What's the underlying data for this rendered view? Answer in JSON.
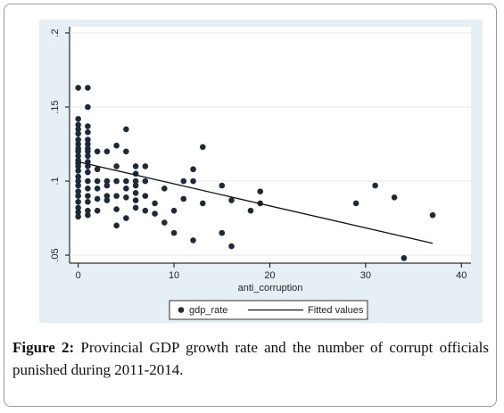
{
  "chart_data": {
    "type": "scatter",
    "xlabel": "anti_corruption",
    "xlim": [
      -0.9,
      41
    ],
    "xticks": [
      0,
      10,
      20,
      30,
      40
    ],
    "ylim": [
      0.0446,
      0.2042
    ],
    "yticks": [
      {
        "value": 0.05,
        "label": ".05"
      },
      {
        "value": 0.1,
        "label": ".1"
      },
      {
        "value": 0.15,
        "label": ".15"
      },
      {
        "value": 0.2,
        "label": ".2"
      }
    ],
    "grid": true,
    "series": [
      {
        "name": "gdp_rate",
        "color": "#1c2a3a",
        "x": [
          0,
          0,
          0,
          0,
          0,
          0,
          0,
          0,
          0,
          0,
          0,
          0,
          0,
          0,
          0,
          0,
          0,
          0,
          0,
          0,
          0,
          0,
          0,
          1,
          1,
          1,
          1,
          1,
          1,
          1,
          1,
          1,
          1,
          1,
          1,
          1,
          1,
          1,
          1,
          1,
          1,
          2,
          2,
          2,
          2,
          2,
          2,
          3,
          3,
          3,
          3,
          3,
          4,
          4,
          4,
          4,
          4,
          4,
          5,
          5,
          5,
          5,
          5,
          5,
          6,
          6,
          6,
          6,
          6,
          6,
          6,
          7,
          7,
          7,
          7,
          8,
          8,
          9,
          9,
          10,
          10,
          11,
          11,
          12,
          12,
          12,
          13,
          13,
          15,
          15,
          16,
          16,
          18,
          19,
          19,
          29,
          31,
          33,
          34,
          37
        ],
        "values": [
          0.163,
          0.142,
          0.138,
          0.135,
          0.132,
          0.128,
          0.125,
          0.122,
          0.12,
          0.117,
          0.114,
          0.112,
          0.11,
          0.107,
          0.103,
          0.1,
          0.097,
          0.093,
          0.09,
          0.086,
          0.082,
          0.079,
          0.076,
          0.163,
          0.15,
          0.137,
          0.133,
          0.128,
          0.125,
          0.122,
          0.12,
          0.117,
          0.113,
          0.11,
          0.106,
          0.1,
          0.095,
          0.09,
          0.086,
          0.08,
          0.077,
          0.12,
          0.108,
          0.1,
          0.095,
          0.088,
          0.08,
          0.12,
          0.1,
          0.097,
          0.09,
          0.087,
          0.124,
          0.11,
          0.1,
          0.09,
          0.081,
          0.07,
          0.135,
          0.12,
          0.1,
          0.095,
          0.089,
          0.075,
          0.11,
          0.105,
          0.1,
          0.097,
          0.092,
          0.087,
          0.082,
          0.11,
          0.1,
          0.09,
          0.08,
          0.085,
          0.078,
          0.095,
          0.072,
          0.08,
          0.065,
          0.1,
          0.088,
          0.108,
          0.1,
          0.06,
          0.123,
          0.085,
          0.097,
          0.065,
          0.087,
          0.056,
          0.08,
          0.093,
          0.085,
          0.085,
          0.097,
          0.089,
          0.048,
          0.077
        ]
      },
      {
        "name": "Fitted values",
        "type": "line",
        "color": "#111111",
        "x": [
          0,
          37
        ],
        "values": [
          0.113,
          0.058
        ]
      }
    ]
  },
  "caption": {
    "label": "Figure 2:",
    "text": "Provincial GDP growth rate and the number of corrupt officials punished during 2011-2014."
  }
}
